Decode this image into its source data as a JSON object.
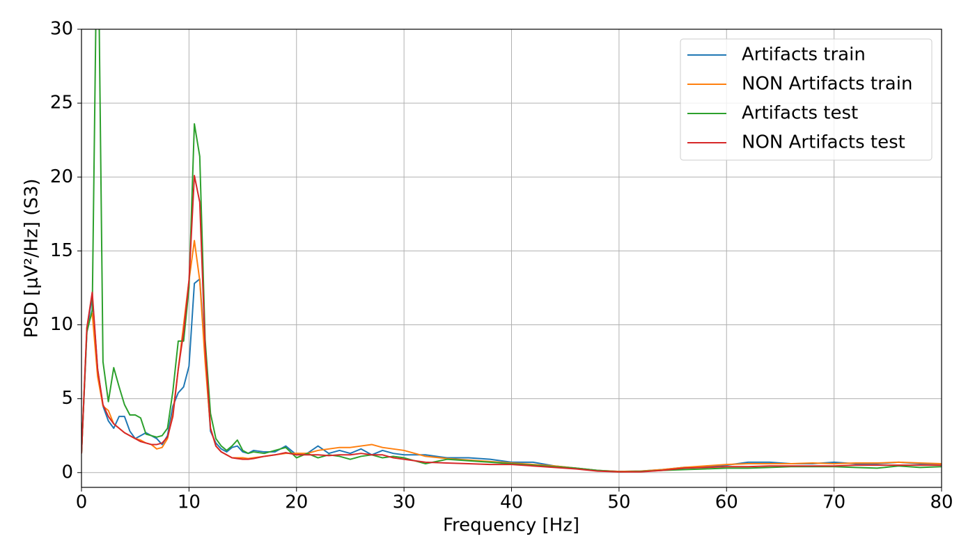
{
  "chart_data": {
    "type": "line",
    "xlabel": "Frequency [Hz]",
    "ylabel": "PSD [μV²/Hz] (S3)",
    "xlim": [
      0,
      80
    ],
    "ylim": [
      -1,
      30
    ],
    "xticks": [
      0,
      10,
      20,
      30,
      40,
      50,
      60,
      70,
      80
    ],
    "yticks": [
      0,
      5,
      10,
      15,
      20,
      25,
      30
    ],
    "grid": true,
    "legend": "upper right",
    "x": [
      0,
      0.5,
      1,
      1.5,
      2,
      2.5,
      3,
      3.5,
      4,
      4.5,
      5,
      5.5,
      6,
      6.5,
      7,
      7.5,
      8,
      8.5,
      9,
      9.5,
      10,
      10.5,
      11,
      11.5,
      12,
      12.5,
      13,
      13.5,
      14,
      14.5,
      15,
      15.5,
      16,
      17,
      18,
      19,
      20,
      21,
      22,
      23,
      24,
      25,
      26,
      27,
      28,
      29,
      30,
      32,
      34,
      36,
      38,
      40,
      42,
      44,
      46,
      48,
      50,
      52,
      54,
      56,
      58,
      60,
      62,
      64,
      66,
      68,
      70,
      72,
      74,
      76,
      78,
      80
    ],
    "series": [
      {
        "name": "Artifacts train",
        "color": "#1f77b4",
        "values": [
          1.3,
          9.5,
          12,
          7,
          4.5,
          3.5,
          3.0,
          3.8,
          3.8,
          2.8,
          2.3,
          2.5,
          2.7,
          2.5,
          2.3,
          1.9,
          2.5,
          4.5,
          5.4,
          5.8,
          7.2,
          12.8,
          13.1,
          8,
          2.8,
          2.0,
          1.6,
          1.4,
          1.7,
          1.8,
          1.4,
          1.3,
          1.5,
          1.4,
          1.4,
          1.8,
          1.2,
          1.3,
          1.8,
          1.3,
          1.5,
          1.3,
          1.6,
          1.2,
          1.5,
          1.3,
          1.2,
          1.2,
          1.0,
          1.0,
          0.9,
          0.7,
          0.7,
          0.45,
          0.3,
          0.15,
          0.08,
          0.1,
          0.2,
          0.35,
          0.4,
          0.5,
          0.7,
          0.7,
          0.6,
          0.6,
          0.7,
          0.6,
          0.6,
          0.7,
          0.6,
          0.6
        ]
      },
      {
        "name": "NON Artifacts train",
        "color": "#ff7f0e",
        "values": [
          1.3,
          9.8,
          10.8,
          6.5,
          4.5,
          4.2,
          3.3,
          3.0,
          2.7,
          2.5,
          2.3,
          2.2,
          2.0,
          1.9,
          1.6,
          1.7,
          2.3,
          4.0,
          7,
          10,
          13,
          15.7,
          13,
          7.5,
          3.0,
          1.8,
          1.4,
          1.2,
          1.0,
          1.0,
          1.0,
          0.95,
          1.0,
          1.1,
          1.2,
          1.3,
          1.3,
          1.3,
          1.5,
          1.6,
          1.7,
          1.7,
          1.8,
          1.9,
          1.7,
          1.6,
          1.5,
          1.1,
          0.95,
          0.85,
          0.75,
          0.65,
          0.55,
          0.45,
          0.3,
          0.15,
          0.08,
          0.1,
          0.2,
          0.35,
          0.45,
          0.55,
          0.6,
          0.6,
          0.6,
          0.65,
          0.6,
          0.65,
          0.65,
          0.7,
          0.65,
          0.6
        ]
      },
      {
        "name": "Artifacts test",
        "color": "#2ca02c",
        "values": [
          1.3,
          9.5,
          11,
          40,
          7.5,
          4.8,
          7.1,
          5.8,
          4.6,
          3.9,
          3.9,
          3.7,
          2.6,
          2.5,
          2.4,
          2.5,
          3.0,
          5.5,
          8.9,
          8.9,
          12.5,
          23.6,
          21.4,
          9,
          4.0,
          2.3,
          1.8,
          1.5,
          1.8,
          2.2,
          1.5,
          1.3,
          1.4,
          1.3,
          1.5,
          1.7,
          1.0,
          1.3,
          1.0,
          1.2,
          1.1,
          0.9,
          1.1,
          1.2,
          1.0,
          1.1,
          1.0,
          0.6,
          0.9,
          0.8,
          0.7,
          0.6,
          0.5,
          0.4,
          0.3,
          0.15,
          0.05,
          0.08,
          0.15,
          0.2,
          0.25,
          0.3,
          0.3,
          0.35,
          0.4,
          0.4,
          0.4,
          0.35,
          0.3,
          0.45,
          0.35,
          0.4
        ]
      },
      {
        "name": "NON Artifacts test",
        "color": "#d62728",
        "values": [
          1.3,
          9.8,
          12.2,
          7,
          4.6,
          3.8,
          3.3,
          3.0,
          2.7,
          2.5,
          2.3,
          2.1,
          2.0,
          1.9,
          1.9,
          2.0,
          2.4,
          3.8,
          7,
          9.5,
          13,
          20.1,
          18.3,
          8.5,
          3.0,
          1.8,
          1.4,
          1.2,
          1.0,
          0.95,
          0.9,
          0.9,
          0.95,
          1.1,
          1.2,
          1.35,
          1.2,
          1.2,
          1.2,
          1.15,
          1.2,
          1.2,
          1.3,
          1.2,
          1.2,
          1.0,
          0.9,
          0.7,
          0.65,
          0.6,
          0.55,
          0.55,
          0.45,
          0.35,
          0.25,
          0.1,
          0.05,
          0.05,
          0.15,
          0.3,
          0.35,
          0.4,
          0.4,
          0.45,
          0.45,
          0.45,
          0.45,
          0.5,
          0.5,
          0.5,
          0.5,
          0.5
        ]
      }
    ]
  }
}
